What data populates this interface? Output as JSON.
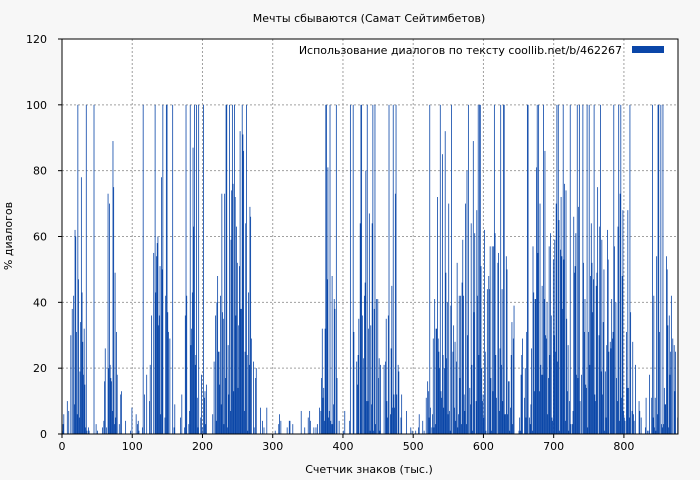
{
  "chart_data": {
    "type": "bar",
    "title": "Мечты сбываются (Самат Сейтимбетов)",
    "xlabel": "Счетчик знаков (тыс.)",
    "ylabel": "% диалогов",
    "xlim": [
      0,
      877
    ],
    "ylim": [
      0,
      120
    ],
    "xticks": [
      "0",
      "100",
      "200",
      "300",
      "400",
      "500",
      "600",
      "700",
      "800"
    ],
    "yticks": [
      "0",
      "20",
      "40",
      "60",
      "80",
      "100",
      "120"
    ],
    "grid": true,
    "legend_position": "top-right",
    "series": [
      {
        "name": "Использование диалогов по тексту  coollib.net/b/462267",
        "color": "#0a46a8",
        "bin_width_thousand_chars": 1,
        "values": []
      }
    ]
  }
}
